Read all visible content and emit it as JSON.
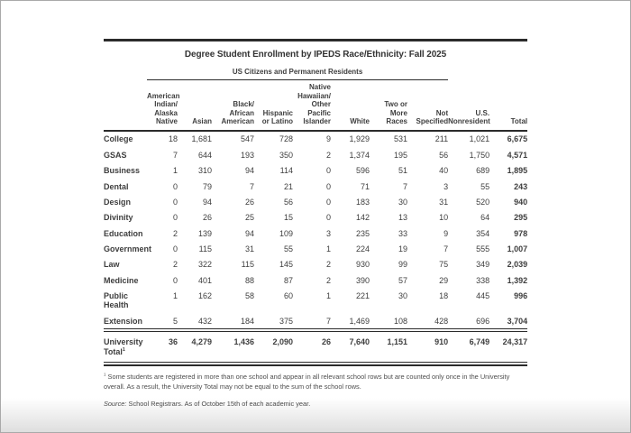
{
  "report": {
    "title": "Degree Student Enrollment by IPEDS Race/Ethnicity: Fall 2025",
    "group_header": "US Citizens and Permanent Residents",
    "column_headers": [
      "American\nIndian/\nAlaska\nNative",
      "Asian",
      "Black/\nAfrican\nAmerican",
      "Hispanic\nor Latino",
      "Native\nHawaiian/\nOther\nPacific\nIslander",
      "White",
      "Two or\nMore\nRaces",
      "Not\nSpecified",
      "U.S.\nNonresident",
      "Total"
    ],
    "rows": [
      {
        "label": "College",
        "values": [
          "18",
          "1,681",
          "547",
          "728",
          "9",
          "1,929",
          "531",
          "211",
          "1,021",
          "6,675"
        ]
      },
      {
        "label": "GSAS",
        "values": [
          "7",
          "644",
          "193",
          "350",
          "2",
          "1,374",
          "195",
          "56",
          "1,750",
          "4,571"
        ]
      },
      {
        "label": "Business",
        "values": [
          "1",
          "310",
          "94",
          "114",
          "0",
          "596",
          "51",
          "40",
          "689",
          "1,895"
        ]
      },
      {
        "label": "Dental",
        "values": [
          "0",
          "79",
          "7",
          "21",
          "0",
          "71",
          "7",
          "3",
          "55",
          "243"
        ]
      },
      {
        "label": "Design",
        "values": [
          "0",
          "94",
          "26",
          "56",
          "0",
          "183",
          "30",
          "31",
          "520",
          "940"
        ]
      },
      {
        "label": "Divinity",
        "values": [
          "0",
          "26",
          "25",
          "15",
          "0",
          "142",
          "13",
          "10",
          "64",
          "295"
        ]
      },
      {
        "label": "Education",
        "values": [
          "2",
          "139",
          "94",
          "109",
          "3",
          "235",
          "33",
          "9",
          "354",
          "978"
        ]
      },
      {
        "label": "Government",
        "values": [
          "0",
          "115",
          "31",
          "55",
          "1",
          "224",
          "19",
          "7",
          "555",
          "1,007"
        ]
      },
      {
        "label": "Law",
        "values": [
          "2",
          "322",
          "115",
          "145",
          "2",
          "930",
          "99",
          "75",
          "349",
          "2,039"
        ]
      },
      {
        "label": "Medicine",
        "values": [
          "0",
          "401",
          "88",
          "87",
          "2",
          "390",
          "57",
          "29",
          "338",
          "1,392"
        ]
      },
      {
        "label": "Public Health",
        "values": [
          "1",
          "162",
          "58",
          "60",
          "1",
          "221",
          "30",
          "18",
          "445",
          "996"
        ]
      },
      {
        "label": "Extension",
        "values": [
          "5",
          "432",
          "184",
          "375",
          "7",
          "1,469",
          "108",
          "428",
          "696",
          "3,704"
        ]
      }
    ],
    "total_row": {
      "label": "University Total",
      "footnote_marker": "1",
      "values": [
        "36",
        "4,279",
        "1,436",
        "2,090",
        "26",
        "7,640",
        "1,151",
        "910",
        "6,749",
        "24,317"
      ]
    },
    "footnote_marker": "1",
    "footnote": "Some students are registered in more than one school and appear in all relevant school rows but are counted only once in the University overall. As a result, the University Total may not be equal to the sum of the school rows.",
    "source_label": "Source:",
    "source_text": "School Registrars. As of October 15th of each academic year."
  },
  "colors": {
    "rule": "#2b2b2b",
    "text": "#3e3e3e",
    "muted_text": "#4d4d4d",
    "page_border": "#a9a9a9"
  }
}
